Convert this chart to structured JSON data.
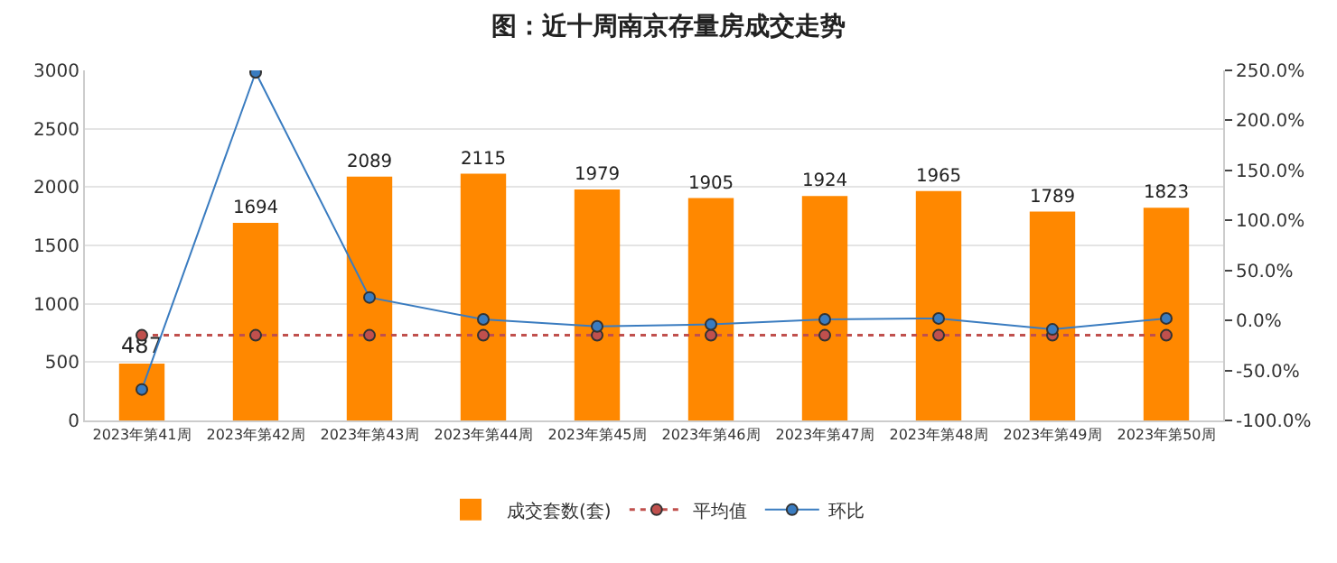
{
  "chart_data": {
    "type": "bar",
    "title": "图：近十周南京存量房成交走势",
    "categories": [
      "2023年第41周",
      "2023年第42周",
      "2023年第43周",
      "2023年第44周",
      "2023年第45周",
      "2023年第46周",
      "2023年第47周",
      "2023年第48周",
      "2023年第49周",
      "2023年第50周"
    ],
    "series": [
      {
        "name": "成交套数(套)",
        "color": "#ff8800",
        "values": [
          487,
          1694,
          2089,
          2115,
          1979,
          1905,
          1924,
          1965,
          1789,
          1823
        ],
        "value_labels": [
          "487",
          "1694",
          "2089",
          "2115",
          "1979",
          "1905",
          "1924",
          "1965",
          "1789",
          "1823"
        ]
      },
      {
        "name": "平均值",
        "type": "line",
        "color": "#c0504d",
        "line_style": "dotted",
        "marker": "circle",
        "values": [
          730,
          730,
          730,
          730,
          730,
          730,
          730,
          730,
          730,
          730
        ]
      },
      {
        "name": "环比",
        "type": "line",
        "axis": "y2",
        "color": "#3a7cc0",
        "line_style": "solid",
        "marker": "circle",
        "values": [
          -69,
          248,
          23,
          1,
          -6,
          -4,
          1,
          2,
          -9,
          2
        ]
      }
    ],
    "ylim": [
      0,
      3000
    ],
    "yticks": [
      0,
      500,
      1000,
      1500,
      2000,
      2500,
      3000
    ],
    "y2lim": [
      -100,
      250
    ],
    "y2ticks": [
      {
        "value": -100,
        "label": "-100.0%"
      },
      {
        "value": -50,
        "label": "-50.0%"
      },
      {
        "value": 0,
        "label": "0.0%"
      },
      {
        "value": 50,
        "label": "50.0%"
      },
      {
        "value": 100,
        "label": "100.0%"
      },
      {
        "value": 150,
        "label": "150.0%"
      },
      {
        "value": 200,
        "label": "200.0%"
      },
      {
        "value": 250,
        "label": "250.0%"
      }
    ],
    "grid": "y",
    "legend": "bottom"
  }
}
